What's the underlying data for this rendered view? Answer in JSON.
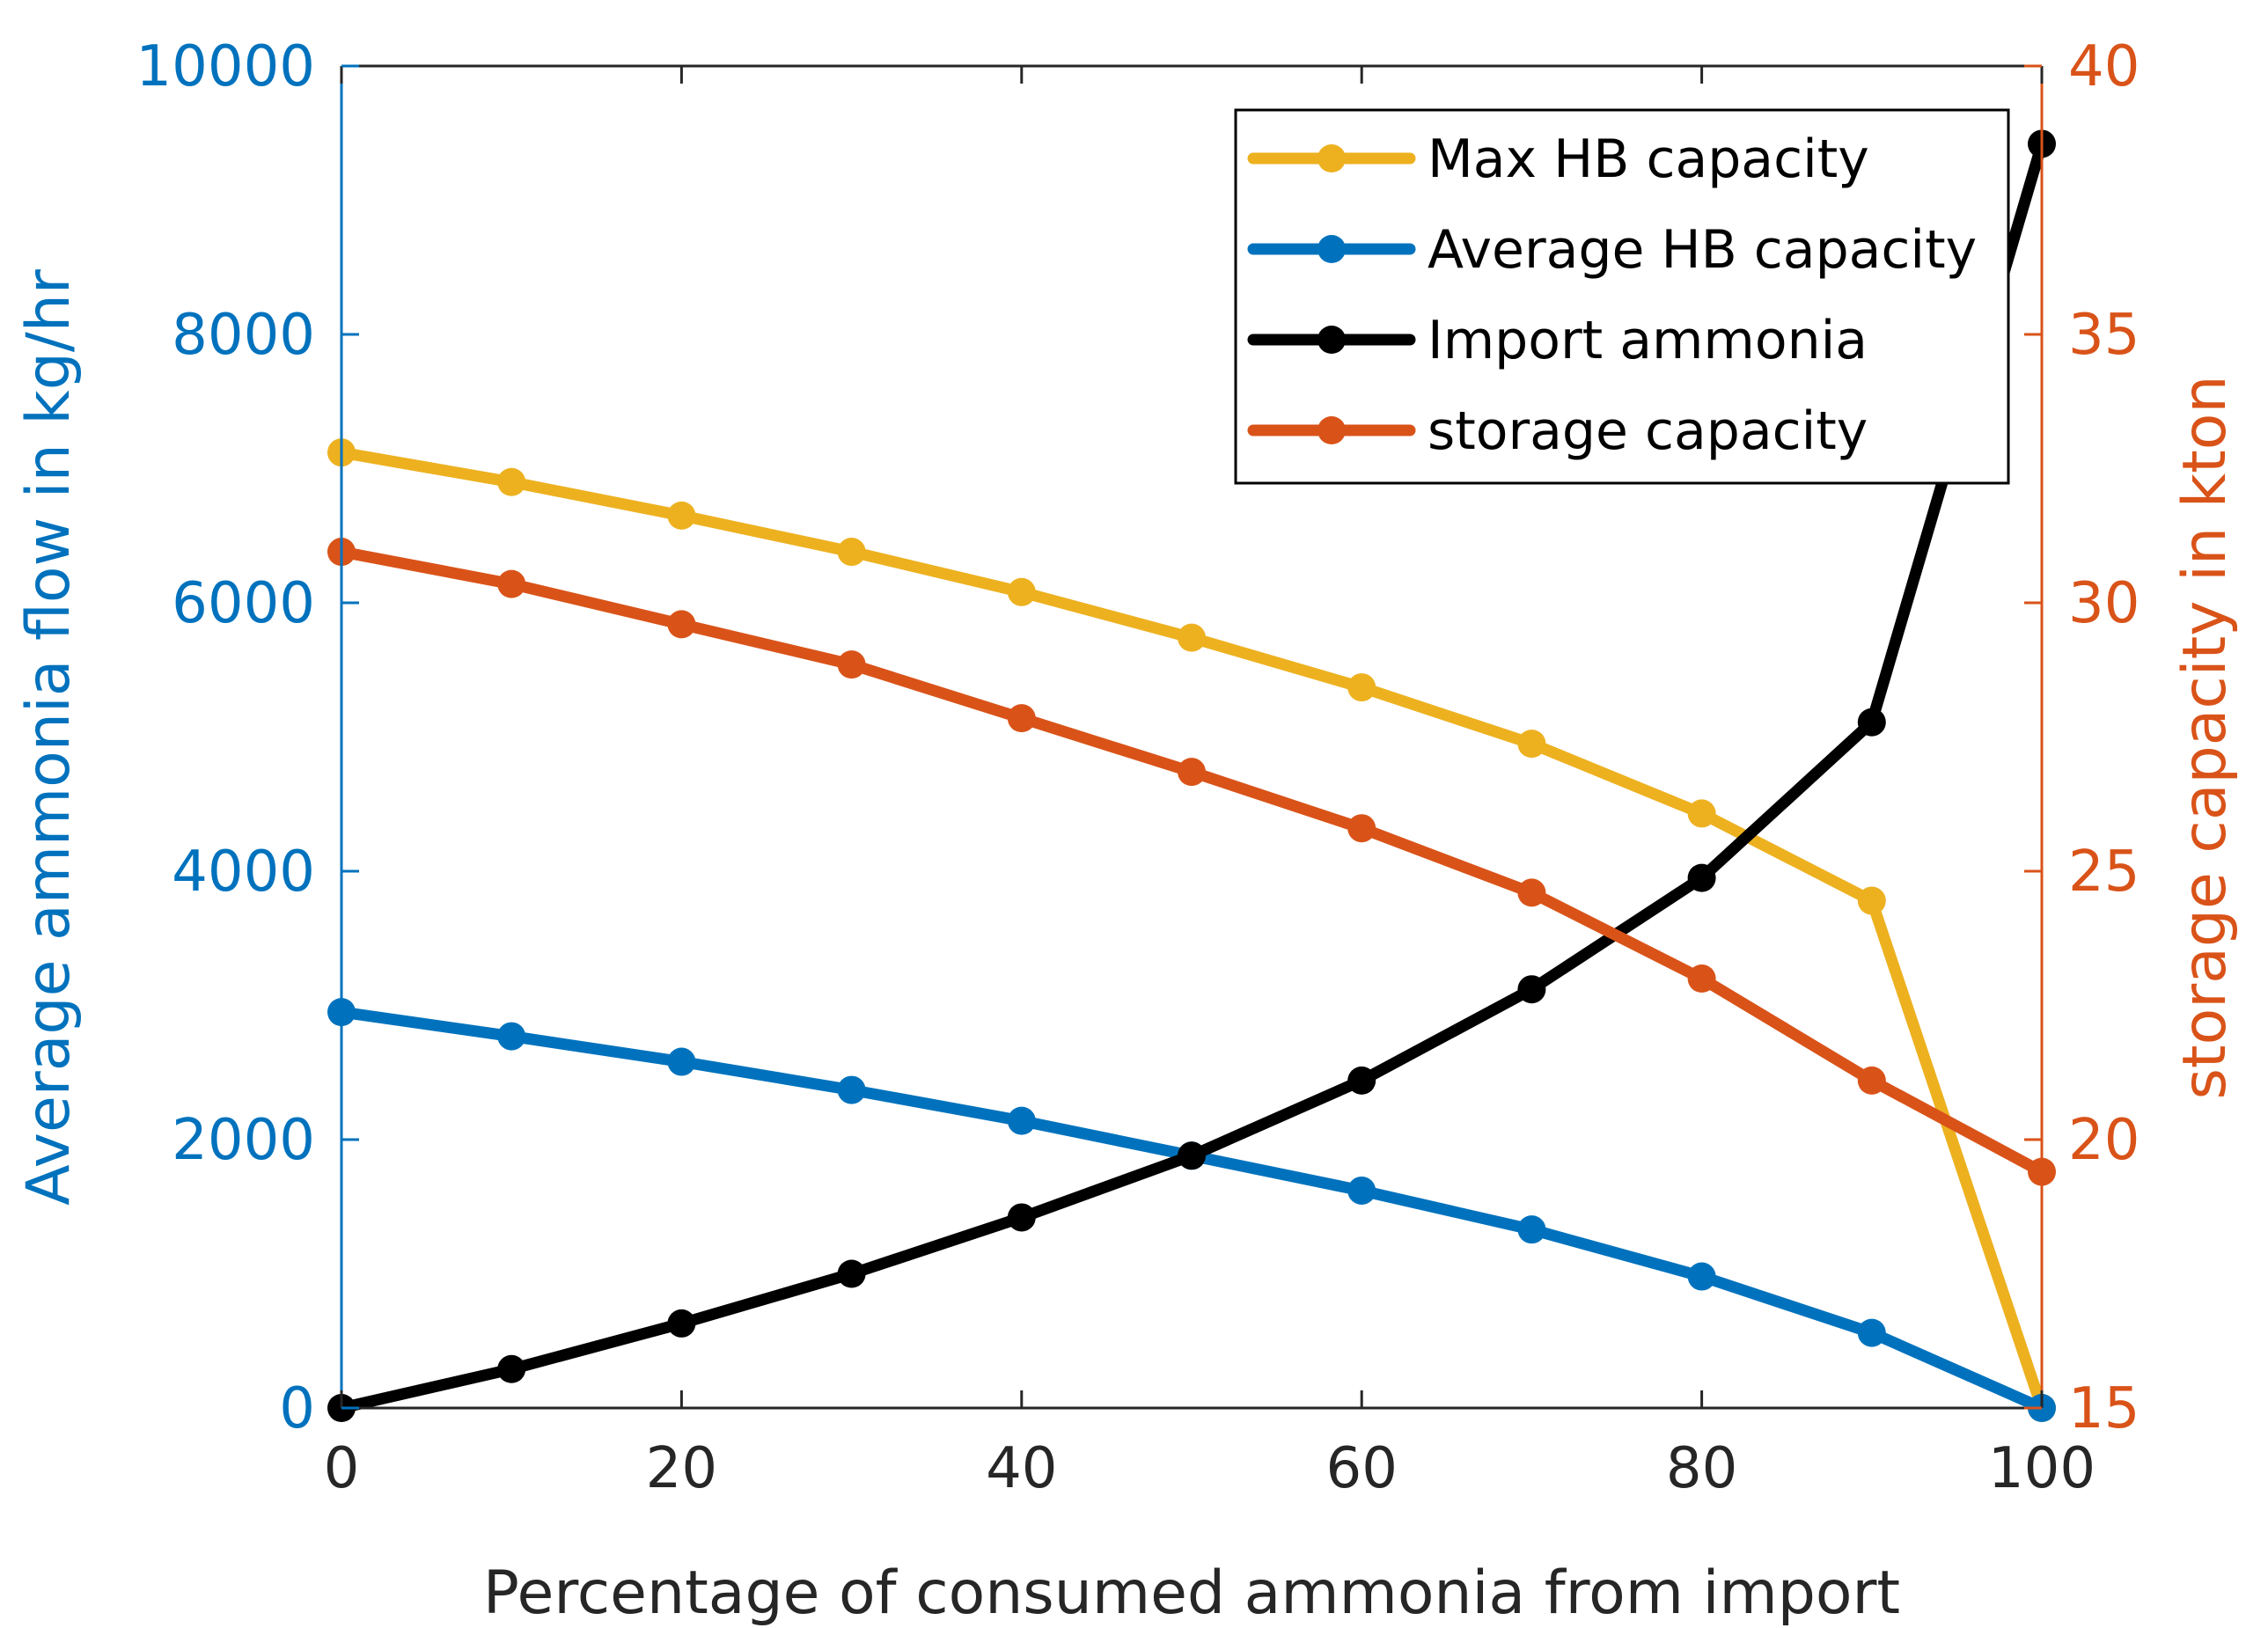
{
  "chart_data": {
    "type": "line",
    "x": [
      0,
      10,
      20,
      30,
      40,
      50,
      60,
      70,
      80,
      90,
      100
    ],
    "xlabel": "Percentage of consumed ammonia from import",
    "xlim": [
      0,
      100
    ],
    "xticks": [
      "0",
      "20",
      "40",
      "60",
      "80",
      "100"
    ],
    "ylabel_left": "Average ammonia flow in kg/hr",
    "ylim_left": [
      0,
      10000
    ],
    "yticks_left": [
      "0",
      "2000",
      "4000",
      "6000",
      "8000",
      "10000"
    ],
    "ylabel_right": "storage capacity in kton",
    "ylim_right": [
      15,
      40
    ],
    "yticks_right": [
      "15",
      "20",
      "25",
      "30",
      "35",
      "40"
    ],
    "grid": false,
    "legend_position": "top-right",
    "series": [
      {
        "name": "Max HB capacity",
        "axis": "left",
        "color": "#EDB120",
        "values": [
          7120,
          6900,
          6650,
          6380,
          6080,
          5740,
          5370,
          4950,
          4430,
          3780,
          0
        ]
      },
      {
        "name": "Average HB capacity",
        "axis": "left",
        "color": "#0072BD",
        "values": [
          2950,
          2770,
          2580,
          2370,
          2140,
          1880,
          1620,
          1330,
          980,
          560,
          0
        ]
      },
      {
        "name": "Import ammonia",
        "axis": "left",
        "color": "#000000",
        "values": [
          0,
          290,
          630,
          1000,
          1420,
          1880,
          2440,
          3120,
          3950,
          5110,
          9420
        ]
      },
      {
        "name": "storage capacity",
        "axis": "right",
        "color": "#D95319",
        "values": [
          30.95,
          30.35,
          29.6,
          28.85,
          27.85,
          26.85,
          25.8,
          24.6,
          23.0,
          21.1,
          19.4
        ]
      }
    ],
    "left_axis_color": "#0072BD",
    "right_axis_color": "#D95319"
  }
}
